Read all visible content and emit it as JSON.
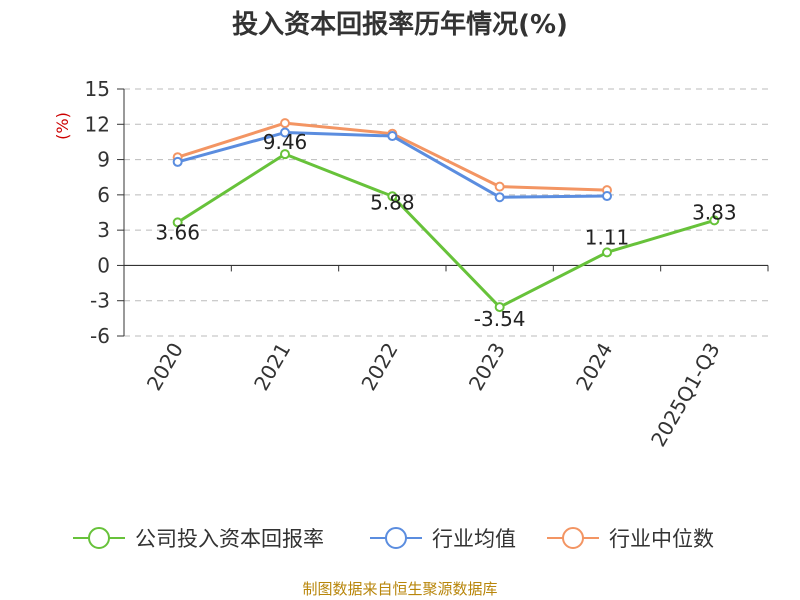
{
  "chart_data": {
    "type": "line",
    "title": "投入资本回报率历年情况(%)",
    "ylabel": "(%)",
    "categories": [
      "2020",
      "2021",
      "2022",
      "2023",
      "2024",
      "2025Q1-Q3"
    ],
    "ylim": [
      -6,
      15
    ],
    "yticks": [
      15,
      12,
      9,
      6,
      3,
      0,
      -3,
      -6
    ],
    "grid": "horizontal-dashed",
    "legend_position": "bottom",
    "series": [
      {
        "name": "公司投入资本回报率",
        "color": "#67c23a",
        "values": [
          3.66,
          9.46,
          5.88,
          -3.54,
          1.11,
          3.83
        ],
        "labels": [
          "3.66",
          "9.46",
          "5.88",
          "-3.54",
          "1.11",
          "3.83"
        ]
      },
      {
        "name": "行业均值",
        "color": "#5b8ddf",
        "values": [
          8.8,
          11.3,
          11.0,
          5.8,
          5.9,
          null
        ]
      },
      {
        "name": "行业中位数",
        "color": "#f39563",
        "values": [
          9.2,
          12.1,
          11.2,
          6.7,
          6.4,
          null
        ]
      }
    ],
    "source": "制图数据来自恒生聚源数据库"
  }
}
